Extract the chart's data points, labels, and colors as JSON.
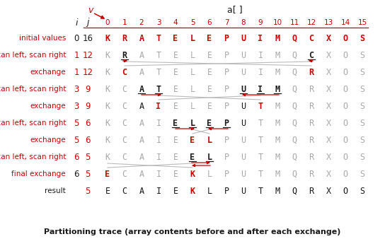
{
  "title": "Partitioning trace (array contents before and after each exchange)",
  "row_labels": [
    "initial values",
    "scan left, scan right",
    "exchange",
    "scan left, scan right",
    "exchange",
    "scan left, scan right",
    "exchange",
    "scan left, scan right",
    "final exchange",
    "result"
  ],
  "i_vals": [
    "0",
    "1",
    "1",
    "3",
    "3",
    "5",
    "5",
    "6",
    "6",
    ""
  ],
  "j_vals": [
    "16",
    "12",
    "12",
    "9",
    "9",
    "6",
    "6",
    "5",
    "5",
    "5"
  ],
  "array_data": [
    [
      "K",
      "R",
      "A",
      "T",
      "E",
      "L",
      "E",
      "P",
      "U",
      "I",
      "M",
      "Q",
      "C",
      "X",
      "O",
      "S"
    ],
    [
      "K",
      "R",
      "A",
      "T",
      "E",
      "L",
      "E",
      "P",
      "U",
      "I",
      "M",
      "Q",
      "C",
      "X",
      "O",
      "S"
    ],
    [
      "K",
      "C",
      "A",
      "T",
      "E",
      "L",
      "E",
      "P",
      "U",
      "I",
      "M",
      "Q",
      "R",
      "X",
      "O",
      "S"
    ],
    [
      "K",
      "C",
      "A",
      "T",
      "E",
      "L",
      "E",
      "P",
      "U",
      "I",
      "M",
      "Q",
      "R",
      "X",
      "O",
      "S"
    ],
    [
      "K",
      "C",
      "A",
      "I",
      "E",
      "L",
      "E",
      "P",
      "U",
      "T",
      "M",
      "Q",
      "R",
      "X",
      "O",
      "S"
    ],
    [
      "K",
      "C",
      "A",
      "I",
      "E",
      "L",
      "E",
      "P",
      "U",
      "T",
      "M",
      "Q",
      "R",
      "X",
      "O",
      "S"
    ],
    [
      "K",
      "C",
      "A",
      "I",
      "E",
      "E",
      "L",
      "P",
      "U",
      "T",
      "M",
      "Q",
      "R",
      "X",
      "O",
      "S"
    ],
    [
      "K",
      "C",
      "A",
      "I",
      "E",
      "E",
      "L",
      "P",
      "U",
      "T",
      "M",
      "Q",
      "R",
      "X",
      "O",
      "S"
    ],
    [
      "E",
      "C",
      "A",
      "I",
      "E",
      "K",
      "L",
      "P",
      "U",
      "T",
      "M",
      "Q",
      "R",
      "X",
      "O",
      "S"
    ],
    [
      "E",
      "C",
      "A",
      "I",
      "E",
      "K",
      "L",
      "P",
      "U",
      "T",
      "M",
      "Q",
      "R",
      "X",
      "O",
      "S"
    ]
  ],
  "bold_indices": [
    [],
    [
      1,
      12
    ],
    [
      1,
      12
    ],
    [
      2,
      3,
      8,
      9,
      10
    ],
    [
      3,
      9
    ],
    [
      4,
      5,
      6,
      7
    ],
    [
      5,
      6
    ],
    [
      5,
      6
    ],
    [
      0,
      5
    ],
    [
      5
    ]
  ],
  "red_indices": [
    [
      0,
      1,
      2,
      3,
      4,
      5,
      6,
      7,
      8,
      9,
      10,
      11,
      12,
      13,
      14,
      15
    ],
    [],
    [
      1,
      12
    ],
    [],
    [
      3,
      9
    ],
    [],
    [
      5,
      6
    ],
    [],
    [
      0,
      5
    ],
    [
      5
    ]
  ],
  "gray_indices": [
    [],
    [
      0,
      2,
      3,
      4,
      5,
      6,
      7,
      8,
      9,
      10,
      11,
      13,
      14,
      15
    ],
    [
      0,
      2,
      3,
      4,
      5,
      6,
      7,
      8,
      9,
      10,
      11,
      13,
      14,
      15
    ],
    [
      0,
      1,
      4,
      5,
      6,
      7,
      11,
      12,
      13,
      14,
      15
    ],
    [
      0,
      1,
      4,
      5,
      6,
      7,
      10,
      11,
      12,
      13,
      14,
      15
    ],
    [
      0,
      1,
      2,
      3,
      9,
      10,
      11,
      12,
      13,
      14,
      15
    ],
    [
      0,
      1,
      2,
      3,
      4,
      7,
      8,
      9,
      10,
      11,
      12,
      13,
      14,
      15
    ],
    [
      0,
      1,
      2,
      3,
      4,
      7,
      8,
      9,
      10,
      11,
      12,
      13,
      14,
      15
    ],
    [
      1,
      2,
      3,
      4,
      6,
      7,
      8,
      9,
      10,
      11,
      12,
      13,
      14,
      15
    ],
    []
  ],
  "i_red": [
    false,
    true,
    true,
    true,
    true,
    true,
    true,
    true,
    false,
    false
  ],
  "j_red": [
    false,
    true,
    true,
    true,
    true,
    true,
    true,
    true,
    true,
    true
  ],
  "label_red": [
    true,
    true,
    true,
    true,
    true,
    true,
    true,
    true,
    true,
    false
  ],
  "bg_color": "#ffffff",
  "dark": "#1a1a1a",
  "red": "#cc0000",
  "gray": "#aaaaaa"
}
